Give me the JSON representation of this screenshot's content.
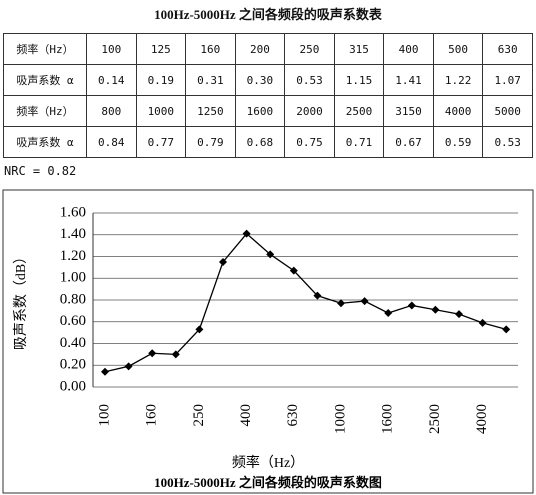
{
  "table": {
    "title": "100Hz-5000Hz 之间各频段的吸声系数表",
    "rows": [
      [
        "频率（Hz）",
        "100",
        "125",
        "160",
        "200",
        "250",
        "315",
        "400",
        "500",
        "630"
      ],
      [
        "吸声系数 α",
        "0.14",
        "0.19",
        "0.31",
        "0.30",
        "0.53",
        "1.15",
        "1.41",
        "1.22",
        "1.07"
      ],
      [
        "频率（Hz）",
        "800",
        "1000",
        "1250",
        "1600",
        "2000",
        "2500",
        "3150",
        "4000",
        "5000"
      ],
      [
        "吸声系数 α",
        "0.84",
        "0.77",
        "0.79",
        "0.68",
        "0.75",
        "0.71",
        "0.67",
        "0.59",
        "0.53"
      ]
    ]
  },
  "nrc": "NRC = 0.82",
  "chart_data": {
    "type": "line",
    "title": "100Hz-5000Hz 之间各频段的吸声系数图",
    "x_label": "频率（Hz）",
    "y_label": "吸声系数（dB）",
    "categories": [
      "100",
      null,
      "160",
      null,
      "250",
      null,
      "400",
      null,
      "630",
      null,
      "1000",
      null,
      "1600",
      null,
      "2500",
      null,
      "4000",
      null
    ],
    "values": [
      0.14,
      0.19,
      0.31,
      0.3,
      0.53,
      1.15,
      1.41,
      1.22,
      1.07,
      0.84,
      0.77,
      0.79,
      0.68,
      0.75,
      0.71,
      0.67,
      0.59,
      0.53
    ],
    "color": "#000000",
    "ylim": [
      0,
      1.6
    ],
    "yticks": [
      {
        "value": 0,
        "label": "0.00"
      },
      {
        "value": 0.2,
        "label": "0.20"
      },
      {
        "value": 0.4,
        "label": "0.40"
      },
      {
        "value": 0.6,
        "label": "0.60"
      },
      {
        "value": 0.8,
        "label": "0.80"
      },
      {
        "value": 1.0,
        "label": "1.00"
      },
      {
        "value": 1.2,
        "label": "1.20"
      },
      {
        "value": 1.4,
        "label": "1.40"
      },
      {
        "value": 1.6,
        "label": "1.60"
      }
    ],
    "grid": true
  }
}
